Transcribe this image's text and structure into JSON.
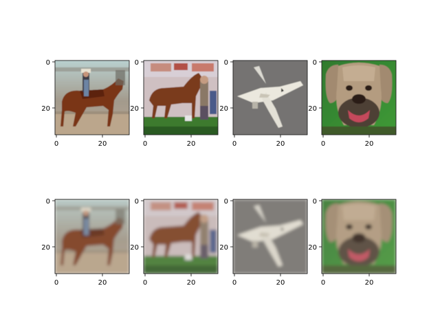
{
  "figure": {
    "background": "#ffffff",
    "axis_color": "#000000",
    "rows": [
      {
        "panels": [
          {
            "subject": "horse with rider",
            "variant": "original",
            "x_ticks": [
              "0",
              "20"
            ],
            "y_ticks": [
              "0",
              "20"
            ]
          },
          {
            "subject": "horse with magazine cover",
            "variant": "original",
            "x_ticks": [
              "0",
              "20"
            ],
            "y_ticks": [
              "0",
              "20"
            ]
          },
          {
            "subject": "airplane",
            "variant": "original",
            "x_ticks": [
              "0",
              "20"
            ],
            "y_ticks": [
              "0",
              "20"
            ]
          },
          {
            "subject": "dog",
            "variant": "original",
            "x_ticks": [
              "0",
              "20"
            ],
            "y_ticks": [
              "0",
              "20"
            ]
          }
        ]
      },
      {
        "panels": [
          {
            "subject": "horse with rider",
            "variant": "reconstruction",
            "x_ticks": [
              "0",
              "20"
            ],
            "y_ticks": [
              "0",
              "20"
            ]
          },
          {
            "subject": "horse with magazine cover",
            "variant": "reconstruction",
            "x_ticks": [
              "0",
              "20"
            ],
            "y_ticks": [
              "0",
              "20"
            ]
          },
          {
            "subject": "airplane",
            "variant": "reconstruction",
            "x_ticks": [
              "0",
              "20"
            ],
            "y_ticks": [
              "0",
              "20"
            ]
          },
          {
            "subject": "dog",
            "variant": "reconstruction",
            "x_ticks": [
              "0",
              "20"
            ],
            "y_ticks": [
              "0",
              "20"
            ]
          }
        ]
      }
    ]
  }
}
